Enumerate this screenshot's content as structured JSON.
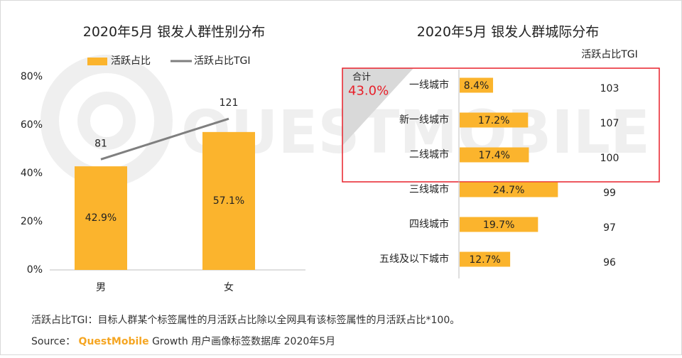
{
  "watermark": "QUESTMOBILE",
  "colors": {
    "bar": "#FBB42D",
    "line": "#7f7f7f",
    "highlight": "#e8202a",
    "text": "#222222",
    "axis": "#bfbfbf"
  },
  "chart_data": [
    {
      "type": "bar",
      "title": "2020年5月 银发人群性别分布",
      "categories": [
        "男",
        "女"
      ],
      "series": [
        {
          "name": "活跃占比",
          "kind": "bar",
          "values": [
            42.9,
            57.1
          ],
          "labels": [
            "42.9%",
            "57.1%"
          ]
        },
        {
          "name": "活跃占比TGI",
          "kind": "line",
          "values": [
            81,
            121
          ],
          "labels": [
            "81",
            "121"
          ]
        }
      ],
      "ylim": [
        0,
        80
      ],
      "yticks": [
        "0%",
        "20%",
        "40%",
        "60%",
        "80%"
      ],
      "legend_position": "top"
    },
    {
      "type": "bar",
      "orientation": "horizontal",
      "title": "2020年5月 银发人群城际分布",
      "categories": [
        "一线城市",
        "新一线城市",
        "二线城市",
        "三线城市",
        "四线城市",
        "五线及以下城市"
      ],
      "values": [
        8.4,
        17.2,
        17.4,
        24.7,
        19.7,
        12.7
      ],
      "labels": [
        "8.4%",
        "17.2%",
        "17.4%",
        "24.7%",
        "19.7%",
        "12.7%"
      ],
      "tgi_header": "活跃占比TGI",
      "tgi": [
        "103",
        "107",
        "100",
        "99",
        "97",
        "96"
      ],
      "highlight": {
        "label": "合计",
        "value": "43.0%",
        "categories": [
          "一线城市",
          "新一线城市",
          "二线城市"
        ]
      }
    }
  ],
  "footer": {
    "note": "活跃占比TGI：目标人群某个标签属性的月活跃占比除以全网具有该标签属性的月活跃占比*100。",
    "source_prefix": "Source：",
    "brand": "QuestMobile",
    "source_suffix": "Growth 用户画像标签数据库 2020年5月"
  }
}
